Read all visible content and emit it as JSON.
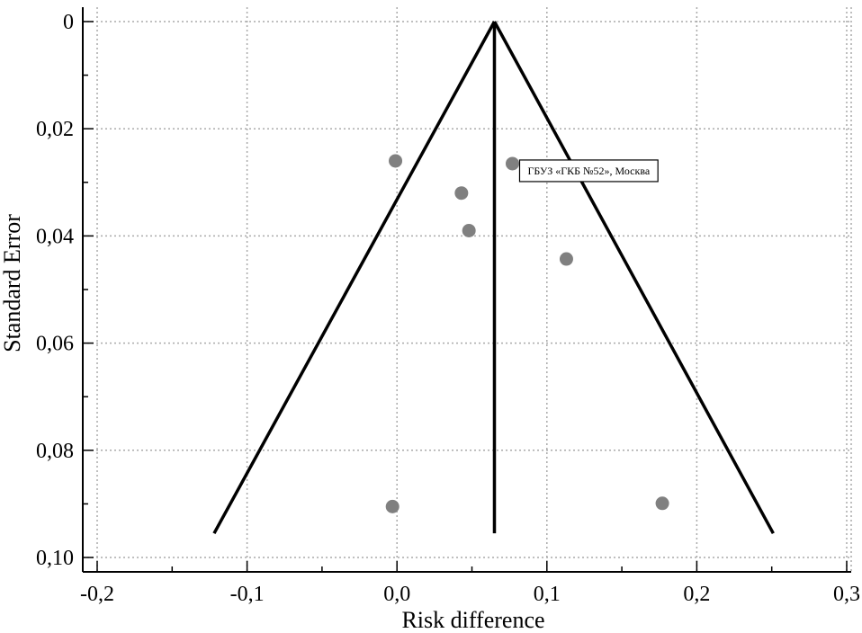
{
  "chart_data": {
    "type": "scatter",
    "subtype": "funnel-plot",
    "xlabel": "Risk difference",
    "ylabel": "Standard Error",
    "xlim": [
      -0.2,
      0.3
    ],
    "ylim": [
      0.1,
      0
    ],
    "y_inverted": true,
    "grid": "dotted",
    "x_ticks": [
      -0.2,
      -0.1,
      0.0,
      0.1,
      0.2,
      0.3
    ],
    "x_tick_labels": [
      "-0,2",
      "-0,1",
      "0,0",
      "0,1",
      "0,2",
      "0,3"
    ],
    "y_ticks": [
      0,
      0.02,
      0.04,
      0.06,
      0.08,
      0.1
    ],
    "y_tick_labels": [
      "0",
      "0,02",
      "0,04",
      "0,06",
      "0,08",
      "0,10"
    ],
    "pooled_effect": 0.065,
    "funnel": {
      "apex": [
        0.065,
        0
      ],
      "left_base": [
        -0.122,
        0.0955
      ],
      "right_base": [
        0.251,
        0.0955
      ]
    },
    "points": [
      {
        "x": -0.001,
        "y": 0.026
      },
      {
        "x": 0.043,
        "y": 0.032
      },
      {
        "x": 0.048,
        "y": 0.039
      },
      {
        "x": 0.077,
        "y": 0.0265
      },
      {
        "x": 0.113,
        "y": 0.0443
      },
      {
        "x": -0.003,
        "y": 0.0905
      },
      {
        "x": 0.177,
        "y": 0.0899
      }
    ],
    "annotations": [
      {
        "text": "ГБУЗ «ГКБ №52», Москва",
        "point_index": 3
      }
    ],
    "colors": {
      "points": "#808080",
      "lines": "#000000",
      "grid": "#aaaaaa"
    }
  }
}
